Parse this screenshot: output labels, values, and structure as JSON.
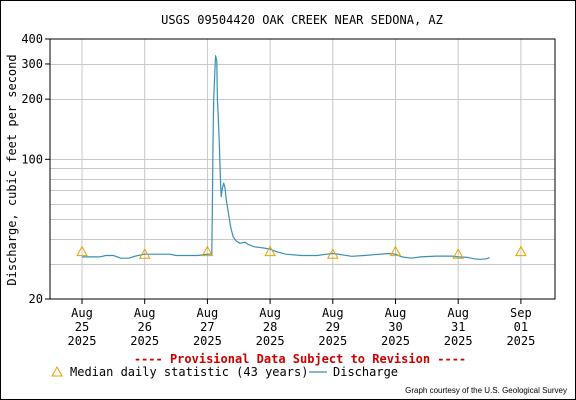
{
  "chart_data": {
    "type": "line",
    "title": "USGS 09504420 OAK CREEK NEAR SEDONA, AZ",
    "ylabel": "Discharge, cubic feet per second",
    "y_scale": "log",
    "ylim": [
      20,
      400
    ],
    "y_ticks": [
      {
        "value": 20,
        "label": "20"
      },
      {
        "value": 100,
        "label": "100"
      },
      {
        "value": 200,
        "label": "200"
      },
      {
        "value": 300,
        "label": "300"
      },
      {
        "value": 400,
        "label": "400"
      }
    ],
    "y_minor_gridlines": [
      30,
      40,
      50,
      60,
      70,
      80,
      90
    ],
    "x_ticks": [
      {
        "label": [
          "Aug",
          "25",
          "2025"
        ]
      },
      {
        "label": [
          "Aug",
          "26",
          "2025"
        ]
      },
      {
        "label": [
          "Aug",
          "27",
          "2025"
        ]
      },
      {
        "label": [
          "Aug",
          "28",
          "2025"
        ]
      },
      {
        "label": [
          "Aug",
          "29",
          "2025"
        ]
      },
      {
        "label": [
          "Aug",
          "30",
          "2025"
        ]
      },
      {
        "label": [
          "Aug",
          "31",
          "2025"
        ]
      },
      {
        "label": [
          "Sep",
          "01",
          "2025"
        ]
      }
    ],
    "grid": true,
    "series": [
      {
        "name": "Discharge",
        "color": "#3a8fb7",
        "points": [
          [
            0.0,
            32.5
          ],
          [
            0.28,
            32.5
          ],
          [
            0.38,
            33.0
          ],
          [
            0.5,
            33.0
          ],
          [
            0.62,
            32.0
          ],
          [
            0.75,
            32.0
          ],
          [
            0.85,
            32.8
          ],
          [
            1.0,
            33.5
          ],
          [
            1.4,
            33.5
          ],
          [
            1.5,
            33.0
          ],
          [
            1.85,
            33.0
          ],
          [
            2.0,
            33.5
          ],
          [
            2.07,
            33.5
          ],
          [
            2.08,
            60
          ],
          [
            2.09,
            120
          ],
          [
            2.1,
            200
          ],
          [
            2.12,
            280
          ],
          [
            2.13,
            330
          ],
          [
            2.15,
            310
          ],
          [
            2.16,
            200
          ],
          [
            2.17,
            170
          ],
          [
            2.19,
            120
          ],
          [
            2.21,
            75
          ],
          [
            2.22,
            65
          ],
          [
            2.24,
            72
          ],
          [
            2.26,
            76
          ],
          [
            2.28,
            72
          ],
          [
            2.3,
            63
          ],
          [
            2.33,
            55
          ],
          [
            2.37,
            46
          ],
          [
            2.41,
            41
          ],
          [
            2.46,
            39
          ],
          [
            2.52,
            38
          ],
          [
            2.6,
            38.5
          ],
          [
            2.65,
            37.5
          ],
          [
            2.75,
            36.5
          ],
          [
            2.9,
            36.0
          ],
          [
            3.0,
            35.5
          ],
          [
            3.1,
            34.5
          ],
          [
            3.25,
            33.5
          ],
          [
            3.5,
            33.0
          ],
          [
            3.75,
            33.0
          ],
          [
            3.9,
            33.5
          ],
          [
            4.0,
            33.8
          ],
          [
            4.15,
            33.3
          ],
          [
            4.3,
            32.7
          ],
          [
            4.5,
            33.0
          ],
          [
            4.75,
            33.5
          ],
          [
            4.9,
            33.8
          ],
          [
            5.0,
            33.5
          ],
          [
            5.1,
            32.5
          ],
          [
            5.25,
            32.0
          ],
          [
            5.4,
            32.5
          ],
          [
            5.65,
            32.8
          ],
          [
            5.9,
            32.8
          ],
          [
            6.0,
            32.5
          ],
          [
            6.15,
            32.3
          ],
          [
            6.25,
            31.8
          ],
          [
            6.35,
            31.6
          ],
          [
            6.45,
            31.8
          ],
          [
            6.5,
            32.2
          ]
        ]
      }
    ],
    "median_daily": {
      "name": "Median daily statistic (43 years)",
      "color": "#e8a200",
      "points": [
        [
          0.0,
          34.5
        ],
        [
          1.0,
          33.5
        ],
        [
          2.0,
          34.5
        ],
        [
          3.0,
          34.5
        ],
        [
          4.0,
          33.5
        ],
        [
          5.0,
          34.5
        ],
        [
          6.0,
          33.5
        ],
        [
          7.0,
          34.5
        ]
      ]
    },
    "footer_warning": "---- Provisional Data Subject to Revision ----",
    "footer_warning_color": "#cc0000",
    "credit": "Graph courtesy of the U.S. Geological Survey"
  }
}
